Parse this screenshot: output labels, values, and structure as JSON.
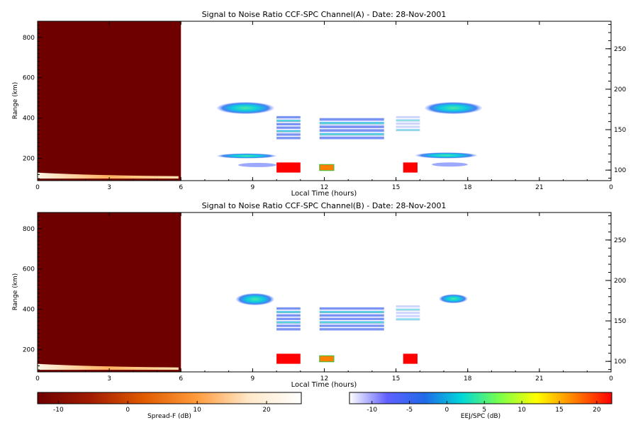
{
  "chart_data": [
    {
      "type": "heatmap",
      "title": "Signal to Noise Ratio CCF-SPC Channel(A) - Date: 28-Nov-2001",
      "xlabel": "Local Time (hours)",
      "ylabel": "Range (km)",
      "xlim": [
        0,
        24
      ],
      "ylim": [
        90,
        880
      ],
      "y2lim": [
        87,
        284
      ],
      "xticks": [
        "0",
        "3",
        "6",
        "9",
        "12",
        "15",
        "18",
        "21",
        "0"
      ],
      "yticks": [
        200,
        400,
        600,
        800
      ],
      "y2ticks": [
        100,
        150,
        200,
        250
      ],
      "spread_f_region": {
        "x": [
          0,
          6
        ],
        "range": [
          90,
          880
        ],
        "level_db": -13,
        "trace_range": [
          100,
          130
        ]
      },
      "echo_regions": [
        {
          "x": [
            7.5,
            9.9
          ],
          "range": [
            420,
            480
          ],
          "level_db": 0
        },
        {
          "x": [
            7.5,
            10.0
          ],
          "range": [
            200,
            225
          ],
          "level_db": 0
        },
        {
          "x": [
            8.4,
            10.0
          ],
          "range": [
            160,
            175
          ],
          "level_db": -5
        },
        {
          "x": [
            10.0,
            11.0
          ],
          "range": [
            290,
            410
          ],
          "level_db": -5
        },
        {
          "x": [
            11.8,
            14.5
          ],
          "range": [
            290,
            400
          ],
          "level_db": -5
        },
        {
          "x": [
            15.0,
            16.0
          ],
          "range": [
            330,
            410
          ],
          "level_db": -10
        },
        {
          "x": [
            16.2,
            18.6
          ],
          "range": [
            420,
            480
          ],
          "level_db": 0
        },
        {
          "x": [
            15.8,
            18.4
          ],
          "range": [
            200,
            230
          ],
          "level_db": 0
        },
        {
          "x": [
            16.5,
            18.0
          ],
          "range": [
            160,
            180
          ],
          "level_db": -5
        }
      ],
      "ejet_blocks": [
        {
          "x": [
            10.0,
            11.0
          ],
          "range": [
            130,
            180
          ],
          "level_db": 22
        },
        {
          "x": [
            11.8,
            12.4
          ],
          "range": [
            140,
            170
          ],
          "level_db": 12
        },
        {
          "x": [
            15.3,
            15.9
          ],
          "range": [
            130,
            180
          ],
          "level_db": 22
        }
      ]
    },
    {
      "type": "heatmap",
      "title": "Signal to Noise Ratio CCF-SPC Channel(B) - Date: 28-Nov-2001",
      "xlabel": "Local Time (hours)",
      "ylabel": "Range (km)",
      "xlim": [
        0,
        24
      ],
      "ylim": [
        90,
        880
      ],
      "y2lim": [
        87,
        284
      ],
      "xticks": [
        "0",
        "3",
        "6",
        "9",
        "12",
        "15",
        "18",
        "21",
        "0"
      ],
      "yticks": [
        200,
        400,
        600,
        800
      ],
      "y2ticks": [
        100,
        150,
        200,
        250
      ],
      "spread_f_region": {
        "x": [
          0,
          6
        ],
        "range": [
          90,
          880
        ],
        "level_db": -13,
        "trace_range": [
          100,
          130
        ]
      },
      "echo_regions": [
        {
          "x": [
            8.3,
            9.9
          ],
          "range": [
            420,
            480
          ],
          "level_db": -2
        },
        {
          "x": [
            10.0,
            11.0
          ],
          "range": [
            290,
            410
          ],
          "level_db": -5
        },
        {
          "x": [
            11.8,
            14.5
          ],
          "range": [
            290,
            410
          ],
          "level_db": -5
        },
        {
          "x": [
            15.0,
            16.0
          ],
          "range": [
            340,
            420
          ],
          "level_db": -10
        },
        {
          "x": [
            16.8,
            18.0
          ],
          "range": [
            430,
            475
          ],
          "level_db": -2
        }
      ],
      "ejet_blocks": [
        {
          "x": [
            10.0,
            11.0
          ],
          "range": [
            130,
            180
          ],
          "level_db": 22
        },
        {
          "x": [
            11.8,
            12.4
          ],
          "range": [
            140,
            170
          ],
          "level_db": 12
        },
        {
          "x": [
            15.3,
            15.9
          ],
          "range": [
            130,
            180
          ],
          "level_db": 22
        }
      ]
    }
  ],
  "colorbars": [
    {
      "label": "Spread-F (dB)",
      "range": [
        -13,
        25
      ],
      "ticks": [
        -10,
        0,
        10,
        20
      ],
      "colors": [
        "#6e0000",
        "#a01c00",
        "#e05a00",
        "#ff9a3a",
        "#ffe8c8",
        "#ffffff"
      ]
    },
    {
      "label": "EEJ/SPC (dB)",
      "range": [
        -13,
        22
      ],
      "ticks": [
        -10,
        -5,
        0,
        5,
        10,
        15,
        20
      ],
      "colors": [
        "#ffffff",
        "#6060ff",
        "#1f6ae8",
        "#00d8d8",
        "#7aff4a",
        "#ffff00",
        "#ff8000",
        "#ff0000"
      ]
    }
  ]
}
